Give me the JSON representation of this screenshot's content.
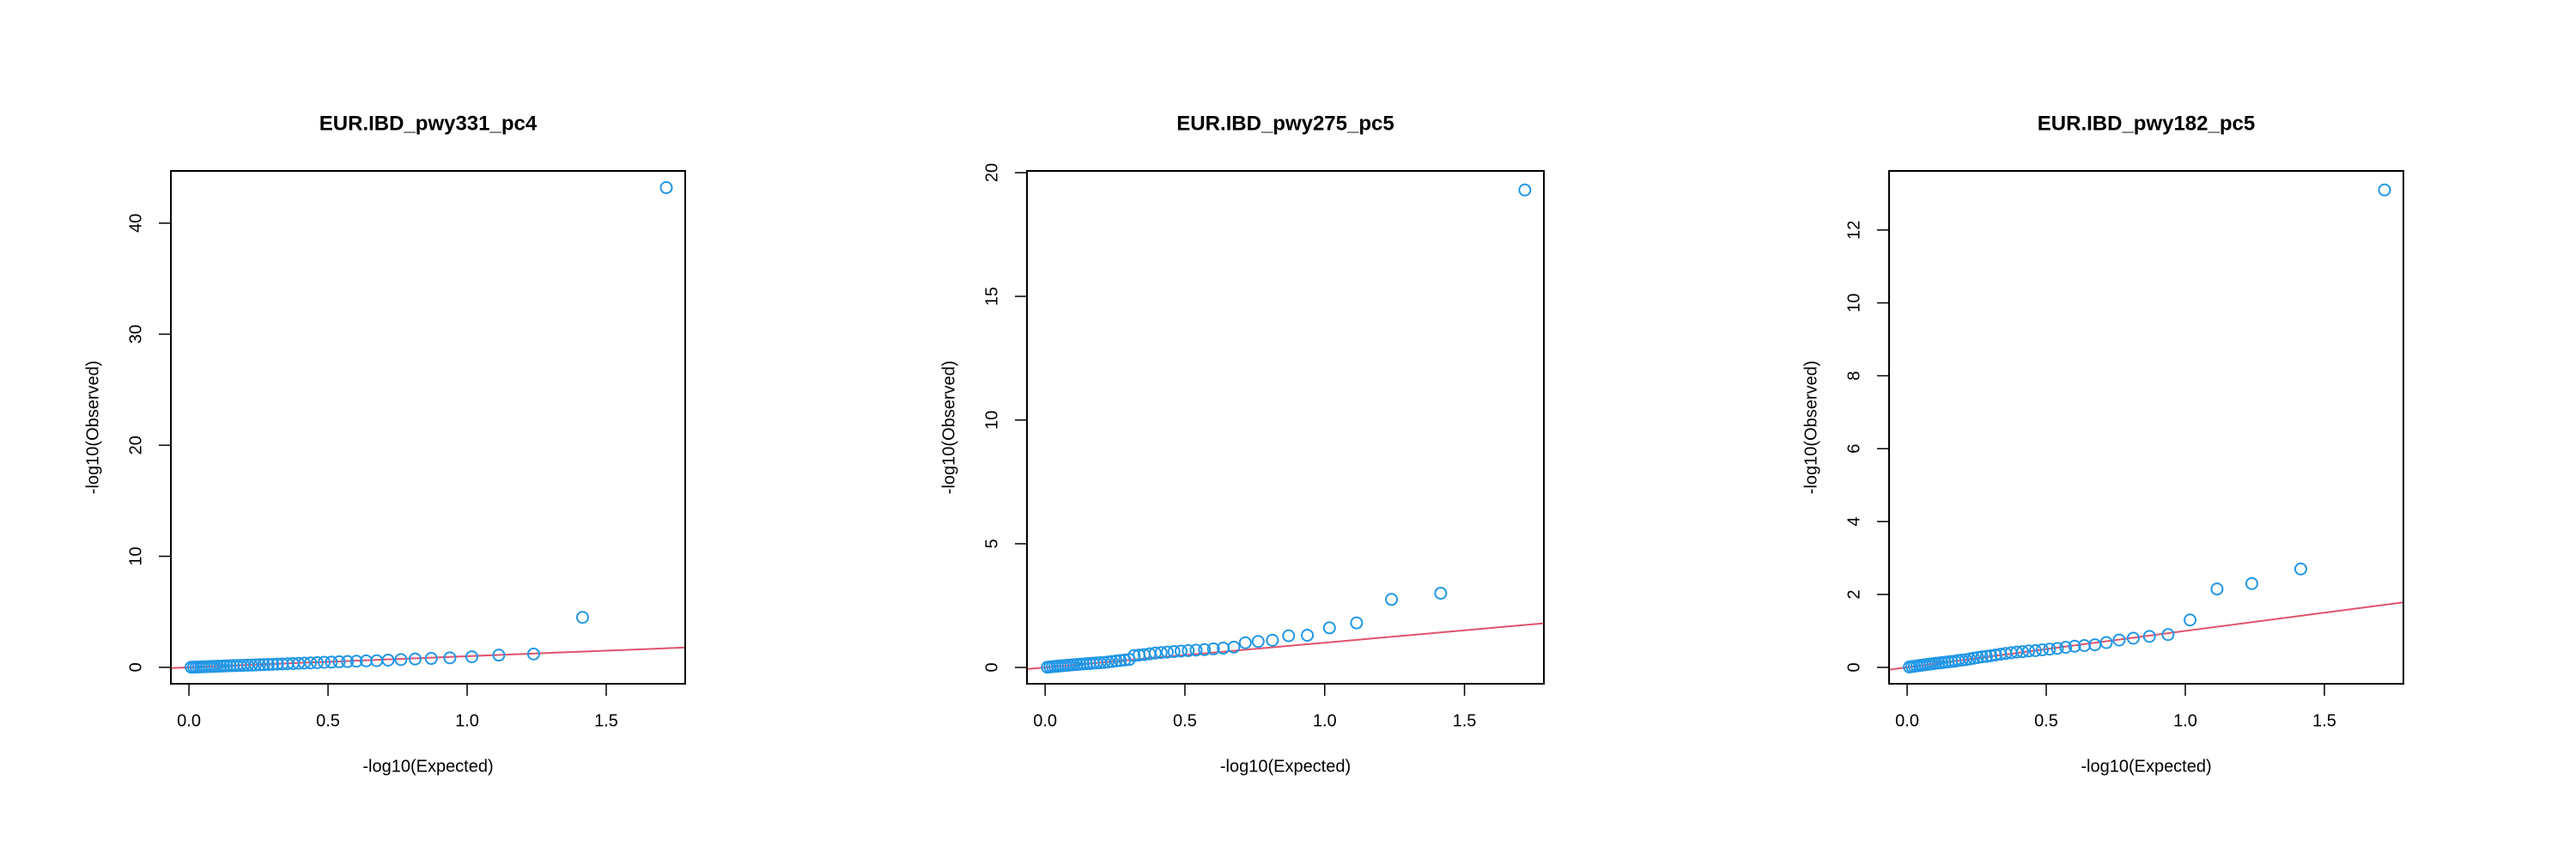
{
  "chart_data": [
    {
      "type": "scatter",
      "title": "EUR.IBD_pwy331_pc4",
      "x_label": "-log10(Expected)",
      "y_label": "-log10(Observed)",
      "x": [
        1.716,
        1.415,
        1.239,
        1.114,
        1.017,
        0.938,
        0.871,
        0.813,
        0.762,
        0.716,
        0.675,
        0.637,
        0.602,
        0.57,
        0.54,
        0.512,
        0.486,
        0.461,
        0.437,
        0.415,
        0.394,
        0.374,
        0.354,
        0.336,
        0.318,
        0.301,
        0.285,
        0.269,
        0.254,
        0.239,
        0.225,
        0.211,
        0.197,
        0.184,
        0.172,
        0.16,
        0.148,
        0.136,
        0.125,
        0.114,
        0.103,
        0.093,
        0.083,
        0.073,
        0.063,
        0.053,
        0.044,
        0.035,
        0.026,
        0.017,
        0.008
      ],
      "values": [
        43.2,
        4.5,
        1.2,
        1.1,
        0.95,
        0.85,
        0.8,
        0.75,
        0.7,
        0.65,
        0.6,
        0.58,
        0.55,
        0.52,
        0.5,
        0.47,
        0.45,
        0.42,
        0.4,
        0.38,
        0.36,
        0.34,
        0.32,
        0.3,
        0.29,
        0.27,
        0.26,
        0.24,
        0.23,
        0.21,
        0.2,
        0.19,
        0.18,
        0.17,
        0.16,
        0.15,
        0.14,
        0.13,
        0.12,
        0.11,
        0.1,
        0.09,
        0.08,
        0.07,
        0.06,
        0.05,
        0.04,
        0.03,
        0.02,
        0.015,
        0.01
      ],
      "color": "#2297E6",
      "reference_line": {
        "slope": 1,
        "intercept": 0,
        "color": "#DF536B"
      },
      "xlim": [
        -0.065,
        1.784
      ],
      "ylim": [
        -1.48,
        44.7
      ],
      "xticks": [
        {
          "value": 0,
          "label": "0.0"
        },
        0.5,
        {
          "value": 1,
          "label": "1.0"
        },
        1.5
      ],
      "yticks": [
        0,
        10,
        20,
        30,
        40
      ]
    },
    {
      "type": "scatter",
      "title": "EUR.IBD_pwy275_pc5",
      "x_label": "-log10(Expected)",
      "y_label": "-log10(Observed)",
      "x": [
        1.716,
        1.415,
        1.239,
        1.114,
        1.017,
        0.938,
        0.871,
        0.813,
        0.762,
        0.716,
        0.675,
        0.637,
        0.602,
        0.57,
        0.54,
        0.512,
        0.486,
        0.461,
        0.437,
        0.415,
        0.394,
        0.374,
        0.354,
        0.336,
        0.318,
        0.301,
        0.285,
        0.269,
        0.254,
        0.239,
        0.225,
        0.211,
        0.197,
        0.184,
        0.172,
        0.16,
        0.148,
        0.136,
        0.125,
        0.114,
        0.103,
        0.093,
        0.083,
        0.073,
        0.063,
        0.053,
        0.044,
        0.035,
        0.026,
        0.017,
        0.008
      ],
      "values": [
        19.3,
        3.0,
        2.75,
        1.8,
        1.6,
        1.3,
        1.28,
        1.1,
        1.05,
        1.0,
        0.82,
        0.78,
        0.75,
        0.72,
        0.7,
        0.68,
        0.66,
        0.64,
        0.62,
        0.6,
        0.58,
        0.55,
        0.52,
        0.5,
        0.48,
        0.32,
        0.3,
        0.28,
        0.26,
        0.24,
        0.22,
        0.2,
        0.19,
        0.18,
        0.17,
        0.16,
        0.15,
        0.14,
        0.13,
        0.12,
        0.11,
        0.1,
        0.09,
        0.08,
        0.07,
        0.06,
        0.05,
        0.04,
        0.03,
        0.02,
        0.01
      ],
      "color": "#2297E6",
      "reference_line": {
        "slope": 1,
        "intercept": 0,
        "color": "#DF536B"
      },
      "xlim": [
        -0.065,
        1.784
      ],
      "ylim": [
        -0.66,
        20.07
      ],
      "xticks": [
        {
          "value": 0,
          "label": "0.0"
        },
        0.5,
        {
          "value": 1,
          "label": "1.0"
        },
        1.5
      ],
      "yticks": [
        0,
        5,
        10,
        15,
        20
      ]
    },
    {
      "type": "scatter",
      "title": "EUR.IBD_pwy182_pc5",
      "x_label": "-log10(Expected)",
      "y_label": "-log10(Observed)",
      "x": [
        1.716,
        1.415,
        1.239,
        1.114,
        1.017,
        0.938,
        0.871,
        0.813,
        0.762,
        0.716,
        0.675,
        0.637,
        0.602,
        0.57,
        0.54,
        0.512,
        0.486,
        0.461,
        0.437,
        0.415,
        0.394,
        0.374,
        0.354,
        0.336,
        0.318,
        0.301,
        0.285,
        0.269,
        0.254,
        0.239,
        0.225,
        0.211,
        0.197,
        0.184,
        0.172,
        0.16,
        0.148,
        0.136,
        0.125,
        0.114,
        0.103,
        0.093,
        0.083,
        0.073,
        0.063,
        0.053,
        0.044,
        0.035,
        0.026,
        0.017,
        0.008
      ],
      "values": [
        13.1,
        2.7,
        2.3,
        2.15,
        1.3,
        0.9,
        0.85,
        0.8,
        0.75,
        0.68,
        0.62,
        0.6,
        0.58,
        0.55,
        0.52,
        0.5,
        0.48,
        0.46,
        0.45,
        0.43,
        0.42,
        0.4,
        0.38,
        0.36,
        0.34,
        0.32,
        0.3,
        0.29,
        0.27,
        0.25,
        0.23,
        0.21,
        0.2,
        0.19,
        0.17,
        0.16,
        0.15,
        0.14,
        0.13,
        0.12,
        0.11,
        0.1,
        0.09,
        0.08,
        0.07,
        0.06,
        0.05,
        0.04,
        0.03,
        0.02,
        0.01
      ],
      "color": "#2297E6",
      "reference_line": {
        "slope": 1,
        "intercept": 0,
        "color": "#DF536B"
      },
      "xlim": [
        -0.065,
        1.784
      ],
      "ylim": [
        -0.45,
        13.62
      ],
      "xticks": [
        {
          "value": 0,
          "label": "0.0"
        },
        0.5,
        {
          "value": 1,
          "label": "1.0"
        },
        1.5
      ],
      "yticks": [
        0,
        2,
        4,
        6,
        8,
        10,
        12
      ]
    }
  ]
}
